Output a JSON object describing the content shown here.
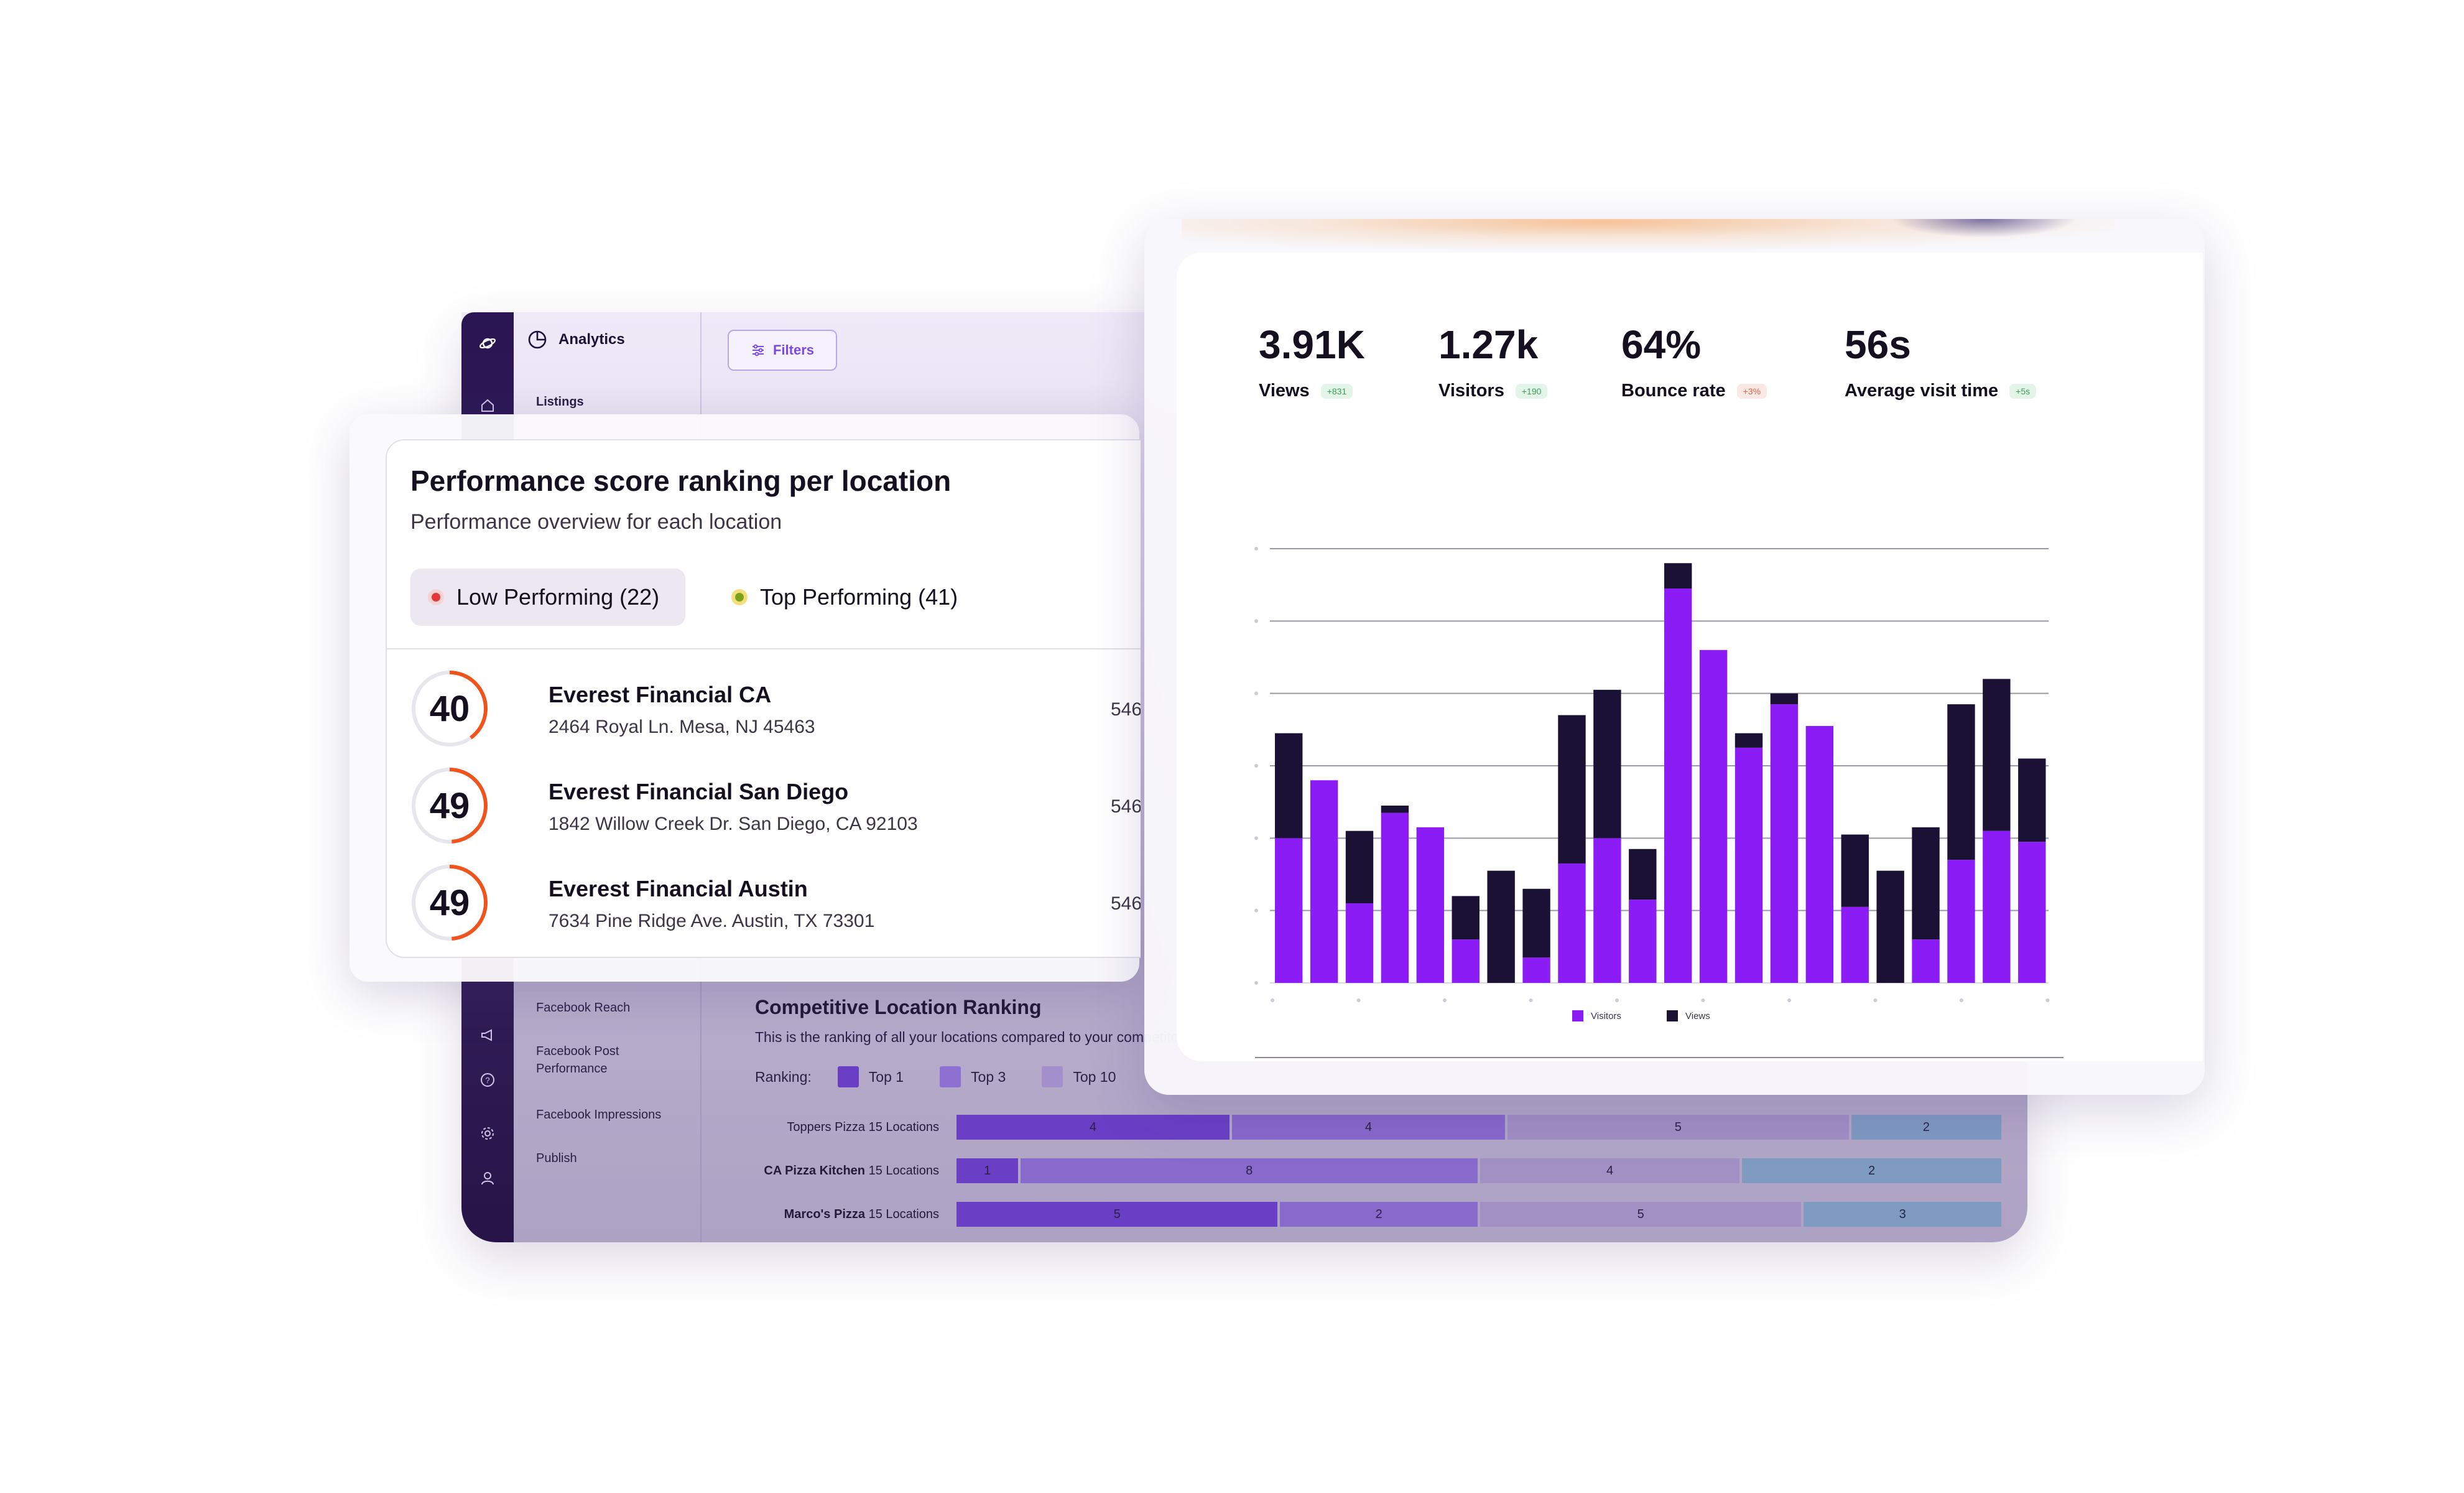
{
  "colors": {
    "primary": "#7b4be0",
    "rail": "#2a1552",
    "visitors": "#8b1cf6",
    "views": "#1b1135",
    "score_ring": "#f0541c",
    "low_dot": "#e5383b",
    "top_dot": "#7fa01f"
  },
  "app": {
    "title": "Analytics",
    "filters_label": "Filters",
    "listings_label": "Listings",
    "nav_items": [
      "Facebook Reach",
      "Facebook Post Performance",
      "Facebook Impressions",
      "Publish"
    ],
    "rail_icons": [
      "planet-logo-icon",
      "home-icon",
      "megaphone-icon",
      "help-icon",
      "settings-icon",
      "user-icon"
    ]
  },
  "competitive": {
    "title": "Competitive Location Ranking",
    "subtitle": "This is the ranking of all your locations compared to your competitors",
    "ranking_label": "Ranking:",
    "legend": [
      {
        "label": "Top 1",
        "color": "#6a3fc6"
      },
      {
        "label": "Top 3",
        "color": "#8f6fd2"
      },
      {
        "label": "Top 10",
        "color": "#a38fcc"
      }
    ],
    "rows": [
      {
        "brand": "Toppers Pizza",
        "locations": "15 Locations",
        "segments": [
          4,
          4,
          5,
          2
        ]
      },
      {
        "brand": "CA Pizza Kitchen",
        "locations": "15 Locations",
        "segments": [
          1,
          8,
          4,
          2
        ]
      },
      {
        "brand": "Marco's Pizza",
        "locations": "15 Locations",
        "segments": [
          5,
          2,
          5,
          3
        ]
      }
    ],
    "segment_colors": [
      "#6a3fc6",
      "#8869cc",
      "#a28fc4",
      "#7f9bc2"
    ]
  },
  "performance": {
    "title": "Performance score ranking per location",
    "subtitle": "Performance overview for each location",
    "tabs": {
      "low": "Low Performing (22)",
      "top": "Top Performing (41)"
    },
    "locations": [
      {
        "score": 40,
        "name": "Everest Financial CA",
        "address": "2464 Royal Ln. Mesa, NJ 45463",
        "value": "546"
      },
      {
        "score": 49,
        "name": "Everest Financial San Diego",
        "address": "1842 Willow Creek Dr. San Diego, CA 92103",
        "value": "546"
      },
      {
        "score": 49,
        "name": "Everest Financial Austin",
        "address": "7634 Pine Ridge Ave. Austin, TX 73301",
        "value": "546"
      }
    ]
  },
  "stats": [
    {
      "value": "3.91K",
      "label": "Views",
      "delta": "+831",
      "trend": "up"
    },
    {
      "value": "1.27k",
      "label": "Visitors",
      "delta": "+190",
      "trend": "up"
    },
    {
      "value": "64%",
      "label": "Bounce rate",
      "delta": "+3%",
      "trend": "down"
    },
    {
      "value": "56s",
      "label": "Average visit time",
      "delta": "+5s",
      "trend": "up"
    }
  ],
  "chart_data": {
    "type": "bar",
    "stacked": true,
    "title": "",
    "xlabel": "",
    "ylabel": "",
    "ylim": [
      0,
      60
    ],
    "grid": true,
    "legend": "bottom-center",
    "categories": [
      "1",
      "2",
      "3",
      "4",
      "5",
      "6",
      "7",
      "8",
      "9",
      "10",
      "11",
      "12",
      "13",
      "14",
      "15",
      "16",
      "17",
      "18",
      "19",
      "20",
      "21",
      "22"
    ],
    "series": [
      {
        "name": "Visitors",
        "values": [
          20,
          28,
          11,
          23.5,
          21.5,
          6,
          0,
          3.5,
          16.5,
          20,
          11.5,
          54.5,
          46,
          32.5,
          38.5,
          35.5,
          10.5,
          0,
          6,
          17,
          21,
          19.5
        ]
      },
      {
        "name": "Views",
        "values": [
          14.5,
          0,
          10,
          1,
          0,
          6,
          15.5,
          9.5,
          20.5,
          20.5,
          7,
          3.5,
          0,
          2,
          1.5,
          0,
          10,
          15.5,
          15.5,
          21.5,
          21,
          11.5
        ]
      }
    ]
  }
}
